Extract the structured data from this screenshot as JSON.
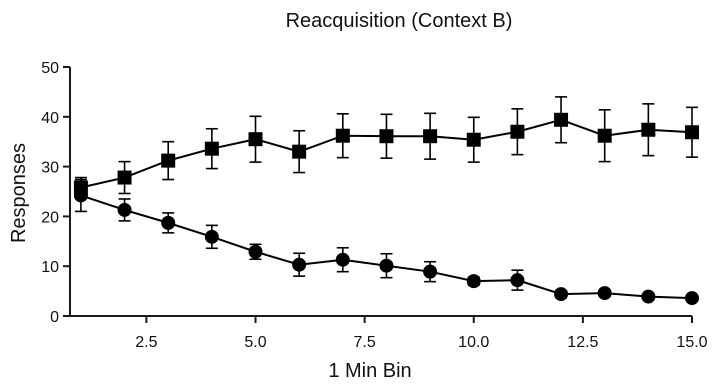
{
  "chart_data": {
    "type": "line",
    "title": "Reacquisition (Context B)",
    "xlabel": "1 Min Bin",
    "ylabel": "Responses",
    "xlim": [
      0.75,
      15
    ],
    "ylim": [
      0,
      50
    ],
    "xticks": [
      2.5,
      5.0,
      7.5,
      10.0,
      12.5,
      15.0
    ],
    "xtick_labels": [
      "2.5",
      "5.0",
      "7.5",
      "10.0",
      "12.5",
      "15.0"
    ],
    "yticks": [
      0,
      10,
      20,
      30,
      40,
      50
    ],
    "ytick_labels": [
      "0",
      "10",
      "20",
      "30",
      "40",
      "50"
    ],
    "grid": false,
    "legend": "none",
    "x": [
      1,
      2,
      3,
      4,
      5,
      6,
      7,
      8,
      9,
      10,
      11,
      12,
      13,
      14,
      15
    ],
    "series": [
      {
        "marker": "square",
        "color": "#000000",
        "values": [
          25.8,
          27.8,
          31.2,
          33.6,
          35.5,
          33.0,
          36.2,
          36.1,
          36.1,
          35.4,
          37.0,
          39.4,
          36.2,
          37.4,
          36.9
        ],
        "error": [
          2.0,
          3.2,
          3.8,
          4.0,
          4.6,
          4.2,
          4.4,
          4.4,
          4.6,
          4.5,
          4.6,
          4.6,
          5.2,
          5.2,
          5.0
        ]
      },
      {
        "marker": "circle",
        "color": "#000000",
        "values": [
          24.2,
          21.3,
          18.7,
          15.9,
          12.9,
          10.3,
          11.3,
          10.1,
          8.9,
          7.0,
          7.2,
          4.4,
          4.6,
          3.9,
          3.6
        ],
        "error": [
          3.2,
          2.2,
          2.0,
          2.3,
          1.5,
          2.3,
          2.4,
          2.4,
          2.0,
          0.8,
          2.0,
          0.7,
          0.6,
          0.5,
          0.5
        ]
      }
    ]
  }
}
